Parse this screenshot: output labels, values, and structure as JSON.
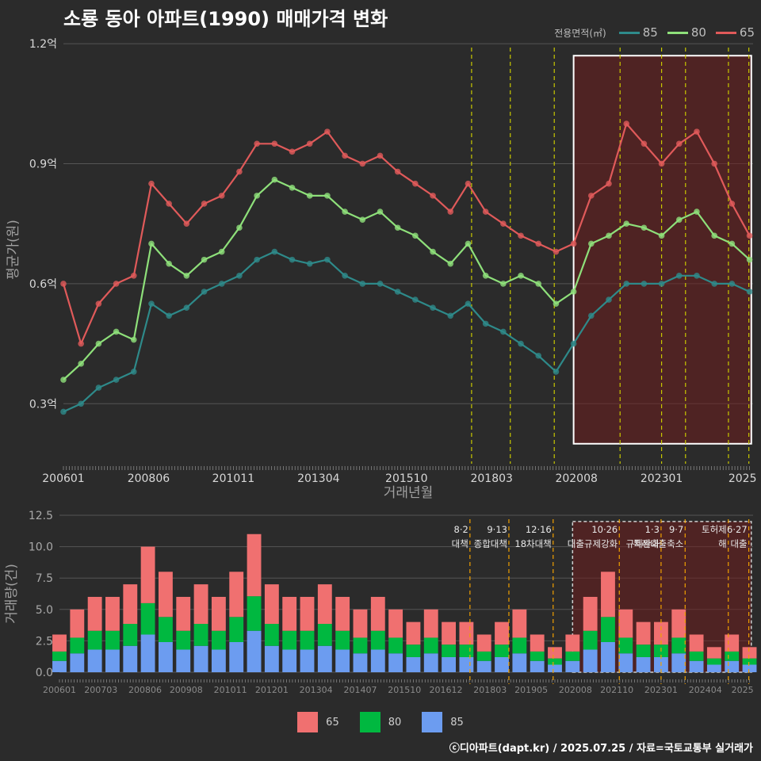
{
  "title": "소룡 동아 아파트(1990) 매매가격 변화",
  "caption": "ⓒ디아파트(dapt.kr) / 2025.07.25 / 자료=국토교통부 실거래가",
  "legend_title": "전용면적(㎡)",
  "colors": {
    "s65": "#e05a5a",
    "s80": "#8ee07a",
    "s85": "#2e8a8a",
    "bar65": "#f07070",
    "bar80": "#00b840",
    "bar85": "#6c9cf0"
  },
  "chart_data": [
    {
      "type": "line",
      "title": "소룡 동아 아파트(1990) 매매가격 변화",
      "xlabel": "거래년월",
      "ylabel": "평균가(원)",
      "ylim": [
        0.15,
        1.22
      ],
      "y_unit": "억",
      "yticks": [
        "0.3억",
        "0.6억",
        "0.9억",
        "1.2억"
      ],
      "ytick_values": [
        0.3,
        0.6,
        0.9,
        1.2
      ],
      "xticks": [
        "200601",
        "200806",
        "201011",
        "201304",
        "201510",
        "201803",
        "202008",
        "202301",
        "2025"
      ],
      "grid": true,
      "legend_position": "top-right",
      "series": [
        {
          "name": "65",
          "x": [
            2006.0,
            2006.5,
            2007.0,
            2007.5,
            2008.0,
            2008.5,
            2009.0,
            2009.5,
            2010.0,
            2010.5,
            2011.0,
            2011.5,
            2012.0,
            2012.5,
            2013.0,
            2013.5,
            2014.0,
            2014.5,
            2015.0,
            2015.5,
            2016.0,
            2016.5,
            2017.0,
            2017.5,
            2018.0,
            2018.5,
            2019.0,
            2019.5,
            2020.0,
            2020.5,
            2021.0,
            2021.5,
            2022.0,
            2022.5,
            2023.0,
            2023.5,
            2024.0,
            2024.5,
            2025.0,
            2025.5
          ],
          "values": [
            0.6,
            0.45,
            0.55,
            0.6,
            0.62,
            0.85,
            0.8,
            0.75,
            0.8,
            0.82,
            0.88,
            0.95,
            0.95,
            0.93,
            0.95,
            0.98,
            0.92,
            0.9,
            0.92,
            0.88,
            0.85,
            0.82,
            0.78,
            0.85,
            0.78,
            0.75,
            0.72,
            0.7,
            0.68,
            0.7,
            0.82,
            0.85,
            1.0,
            0.95,
            0.9,
            0.95,
            0.98,
            0.9,
            0.8,
            0.72
          ]
        },
        {
          "name": "80",
          "x": [
            2006.0,
            2006.5,
            2007.0,
            2007.5,
            2008.0,
            2008.5,
            2009.0,
            2009.5,
            2010.0,
            2010.5,
            2011.0,
            2011.5,
            2012.0,
            2012.5,
            2013.0,
            2013.5,
            2014.0,
            2014.5,
            2015.0,
            2015.5,
            2016.0,
            2016.5,
            2017.0,
            2017.5,
            2018.0,
            2018.5,
            2019.0,
            2019.5,
            2020.0,
            2020.5,
            2021.0,
            2021.5,
            2022.0,
            2022.5,
            2023.0,
            2023.5,
            2024.0,
            2024.5,
            2025.0,
            2025.5
          ],
          "values": [
            0.36,
            0.4,
            0.45,
            0.48,
            0.46,
            0.7,
            0.65,
            0.62,
            0.66,
            0.68,
            0.74,
            0.82,
            0.86,
            0.84,
            0.82,
            0.82,
            0.78,
            0.76,
            0.78,
            0.74,
            0.72,
            0.68,
            0.65,
            0.7,
            0.62,
            0.6,
            0.62,
            0.6,
            0.55,
            0.58,
            0.7,
            0.72,
            0.75,
            0.74,
            0.72,
            0.76,
            0.78,
            0.72,
            0.7,
            0.66
          ]
        },
        {
          "name": "85",
          "x": [
            2006.0,
            2006.5,
            2007.0,
            2007.5,
            2008.0,
            2008.5,
            2009.0,
            2009.5,
            2010.0,
            2010.5,
            2011.0,
            2011.5,
            2012.0,
            2012.5,
            2013.0,
            2013.5,
            2014.0,
            2014.5,
            2015.0,
            2015.5,
            2016.0,
            2016.5,
            2017.0,
            2017.5,
            2018.0,
            2018.5,
            2019.0,
            2019.5,
            2020.0,
            2020.5,
            2021.0,
            2021.5,
            2022.0,
            2022.5,
            2023.0,
            2023.5,
            2024.0,
            2024.5,
            2025.0,
            2025.5
          ],
          "values": [
            0.28,
            0.3,
            0.34,
            0.36,
            0.38,
            0.55,
            0.52,
            0.54,
            0.58,
            0.6,
            0.62,
            0.66,
            0.68,
            0.66,
            0.65,
            0.66,
            0.62,
            0.6,
            0.6,
            0.58,
            0.56,
            0.54,
            0.52,
            0.55,
            0.5,
            0.48,
            0.45,
            0.42,
            0.38,
            0.45,
            0.52,
            0.56,
            0.6,
            0.6,
            0.6,
            0.62,
            0.62,
            0.6,
            0.6,
            0.58
          ]
        }
      ]
    },
    {
      "type": "bar",
      "ylabel": "거래량(건)",
      "ylim": [
        0,
        12.5
      ],
      "yticks": [
        "0.0",
        "2.5",
        "5.0",
        "7.5",
        "10.0",
        "12.5"
      ],
      "ytick_values": [
        0,
        2.5,
        5,
        7.5,
        10,
        12.5
      ],
      "xticks": [
        "200601",
        "200703",
        "200806",
        "200908",
        "201011",
        "201201",
        "201304",
        "201407",
        "201510",
        "201612",
        "201803",
        "201905",
        "202008",
        "202110",
        "202301",
        "202404",
        "2025"
      ],
      "series_names": [
        "65",
        "80",
        "85"
      ],
      "x": [
        2006.0,
        2006.5,
        2007.0,
        2007.5,
        2008.0,
        2008.5,
        2009.0,
        2009.5,
        2010.0,
        2010.5,
        2011.0,
        2011.5,
        2012.0,
        2012.5,
        2013.0,
        2013.5,
        2014.0,
        2014.5,
        2015.0,
        2015.5,
        2016.0,
        2016.5,
        2017.0,
        2017.5,
        2018.0,
        2018.5,
        2019.0,
        2019.5,
        2020.0,
        2020.5,
        2021.0,
        2021.5,
        2022.0,
        2022.5,
        2023.0,
        2023.5,
        2024.0,
        2024.5,
        2025.0,
        2025.5
      ],
      "totals": [
        3,
        5,
        6,
        6,
        7,
        10,
        8,
        6,
        7,
        6,
        8,
        11,
        7,
        6,
        6,
        7,
        6,
        5,
        6,
        5,
        4,
        5,
        4,
        4,
        3,
        4,
        5,
        3,
        2,
        3,
        6,
        8,
        5,
        4,
        4,
        5,
        3,
        2,
        3,
        2
      ],
      "annotations": [
        {
          "label": "8·2 대책",
          "x": 2017.6
        },
        {
          "label": "9·13 종합대책",
          "x": 2018.7
        },
        {
          "label": "12·16 18차대책",
          "x": 2019.95
        },
        {
          "label": "10·26 대출규제강화",
          "x": 2021.82
        },
        {
          "label": "1·3 규제완화",
          "x": 2023.0
        },
        {
          "label": "9·7 특례대출축소",
          "x": 2023.68
        },
        {
          "label": "토허제 해",
          "x": 2024.9
        },
        {
          "label": "6·27 대출",
          "x": 2025.48
        }
      ]
    }
  ]
}
